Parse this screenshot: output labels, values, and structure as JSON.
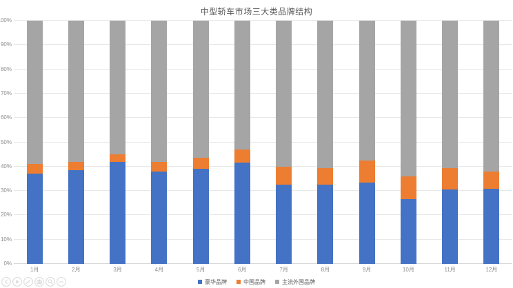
{
  "title": "中型轿车市场三大类品牌结构",
  "chart_data": {
    "type": "bar",
    "stacked": true,
    "percent_stacked": true,
    "title": "中型轿车市场三大类品牌结构",
    "categories": [
      "1月",
      "2月",
      "3月",
      "4月",
      "5月",
      "6月",
      "7月",
      "8月",
      "9月",
      "10月",
      "11月",
      "12月"
    ],
    "series": [
      {
        "name": "豪华品牌",
        "color": "#4472C4",
        "values": [
          37,
          38.5,
          42,
          38,
          39,
          41.5,
          32.5,
          32.5,
          33.5,
          26.5,
          30.5,
          31
        ]
      },
      {
        "name": "中国品牌",
        "color": "#ED7D31",
        "values": [
          4,
          3.5,
          3,
          4,
          4.5,
          5.5,
          7.5,
          7,
          9,
          9.5,
          9,
          7
        ]
      },
      {
        "name": "主流外国品牌",
        "color": "#A5A5A5",
        "values": [
          59,
          58,
          55,
          58,
          56.5,
          53,
          60,
          60.5,
          57.5,
          64,
          60.5,
          62
        ]
      }
    ],
    "xlabel": "",
    "ylabel": "",
    "ylim": [
      0,
      100
    ],
    "y_ticks": [
      "0%",
      "10%",
      "20%",
      "30%",
      "40%",
      "50%",
      "60%",
      "70%",
      "80%",
      "90%",
      "100%"
    ],
    "grid": true,
    "legend_position": "bottom"
  },
  "colors": {
    "title_text": "#595959",
    "axis_text": "#8c8c8c",
    "gridline": "#e8e8e8",
    "axis_line": "#d9d9d9",
    "toolbar_icon": "#cfcfcf"
  },
  "toolbar": {
    "icons": [
      "chevron-left-icon",
      "play-icon",
      "pencil-icon",
      "camera-icon",
      "magnifier-icon",
      "minus-icon"
    ]
  }
}
